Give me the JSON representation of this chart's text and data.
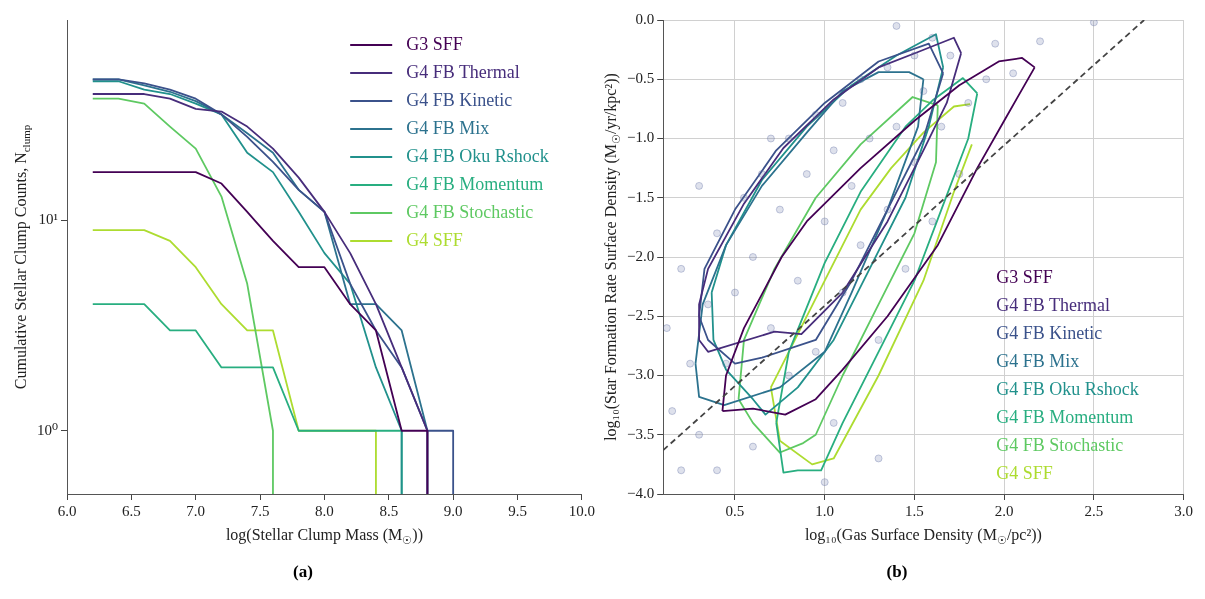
{
  "chart_data": [
    {
      "type": "line",
      "xlabel": "log(Stellar Clump Mass (M$_{☉}$))",
      "ylabel": "Cumulative Stellar Clump Counts, N$_{clump}$",
      "log": "y",
      "grid": false,
      "legend": "top right",
      "marker": "none",
      "xlim": [
        6.0,
        10.0
      ],
      "xticks": [
        {
          "value": 6,
          "label": "6.0"
        },
        {
          "value": 6.5,
          "label": "6.5"
        },
        {
          "value": 7,
          "label": "7.0"
        },
        {
          "value": 7.5,
          "label": "7.5"
        },
        {
          "value": 8,
          "label": "8.0"
        },
        {
          "value": 8.5,
          "label": "8.5"
        },
        {
          "value": 9,
          "label": "9.0"
        },
        {
          "value": 9.5,
          "label": "9.5"
        },
        {
          "value": 10,
          "label": "10.0"
        }
      ],
      "ylim": [
        0.5,
        90
      ],
      "yticks": [
        {
          "value": 1,
          "label": "10⁰"
        },
        {
          "value": 10,
          "label": "10¹"
        }
      ],
      "annotations": [
        "(a)"
      ],
      "series": [
        {
          "name": "G3 SFF",
          "color": "#440154",
          "x": [
            6.2,
            6.4,
            6.6,
            6.8,
            7.0,
            7.2,
            7.4,
            7.6,
            7.8,
            8.0,
            8.2,
            8.4,
            8.6,
            8.8,
            8.8
          ],
          "values": [
            17,
            17,
            17,
            17,
            17,
            15,
            11,
            8,
            6,
            6,
            4,
            3,
            1,
            1,
            0.5
          ]
        },
        {
          "name": "G4 FB Thermal",
          "color": "#472d7b",
          "x": [
            6.2,
            6.4,
            6.6,
            6.8,
            7.0,
            7.2,
            7.4,
            7.6,
            7.8,
            8.0,
            8.2,
            8.4,
            8.6,
            8.8,
            8.8
          ],
          "values": [
            40,
            40,
            40,
            38,
            34,
            33,
            28,
            22,
            16,
            11,
            7,
            4,
            2,
            1,
            0.5
          ]
        },
        {
          "name": "G4 FB Kinetic",
          "color": "#3b528b",
          "x": [
            6.2,
            6.4,
            6.6,
            6.8,
            7.0,
            7.2,
            7.4,
            7.6,
            7.8,
            8.0,
            8.2,
            8.4,
            8.6,
            8.8,
            9.0,
            9.0
          ],
          "values": [
            47,
            47,
            45,
            42,
            38,
            32,
            25,
            19,
            14,
            11,
            5,
            3,
            2,
            1,
            1,
            0.5
          ]
        },
        {
          "name": "G4 FB Mix",
          "color": "#2c728e",
          "x": [
            6.2,
            6.4,
            6.6,
            6.8,
            7.0,
            7.2,
            7.4,
            7.6,
            7.8,
            8.0,
            8.2,
            8.4,
            8.6,
            8.8,
            8.8
          ],
          "values": [
            47,
            47,
            44,
            41,
            37,
            32,
            26,
            21,
            14,
            11,
            4,
            4,
            3,
            1,
            0.5
          ]
        },
        {
          "name": "G4 FB Oku Rshock",
          "color": "#21918c",
          "x": [
            6.2,
            6.4,
            6.6,
            6.8,
            7.0,
            7.2,
            7.4,
            7.6,
            7.8,
            8.0,
            8.2,
            8.4,
            8.6,
            8.6
          ],
          "values": [
            46,
            46,
            42,
            40,
            36,
            32,
            21,
            17,
            11,
            7,
            5,
            2,
            1,
            0.5
          ]
        },
        {
          "name": "G4 FB Momentum",
          "color": "#28ae80",
          "x": [
            6.2,
            6.4,
            6.6,
            6.8,
            7.0,
            7.2,
            7.4,
            7.6,
            7.8,
            8.0,
            8.2,
            8.4,
            8.6,
            8.6
          ],
          "values": [
            4,
            4,
            4,
            3,
            3,
            2,
            2,
            2,
            1,
            1,
            1,
            1,
            1,
            0.5
          ]
        },
        {
          "name": "G4 FB Stochastic",
          "color": "#5ec962",
          "x": [
            6.2,
            6.4,
            6.6,
            6.8,
            7.0,
            7.2,
            7.4,
            7.6,
            7.6
          ],
          "values": [
            38,
            38,
            36,
            28,
            22,
            13,
            5,
            1,
            0.5
          ]
        },
        {
          "name": "G4 SFF",
          "color": "#addc30",
          "x": [
            6.2,
            6.4,
            6.6,
            6.8,
            7.0,
            7.2,
            7.4,
            7.6,
            7.8,
            8.0,
            8.2,
            8.4,
            8.4
          ],
          "values": [
            9,
            9,
            9,
            8,
            6,
            4,
            3,
            3,
            1,
            1,
            1,
            1,
            0.5
          ]
        }
      ]
    },
    {
      "type": "line",
      "xlabel": "log₁₀(Gas Surface Density (M$_{☉}$/pc²))",
      "ylabel": "log₁₀(Star Formation Rate Surface Density (M$_{☉}$/yr/kpc²))",
      "grid": true,
      "legend": "bottom right",
      "marker": "none",
      "xlim": [
        0.1,
        3.0
      ],
      "xticks": [
        {
          "value": 0.5,
          "label": "0.5"
        },
        {
          "value": 1,
          "label": "1.0"
        },
        {
          "value": 1.5,
          "label": "1.5"
        },
        {
          "value": 2,
          "label": "2.0"
        },
        {
          "value": 2.5,
          "label": "2.5"
        },
        {
          "value": 3,
          "label": "3.0"
        }
      ],
      "ylim": [
        -4.0,
        0.0
      ],
      "yticks": [
        {
          "value": -4,
          "label": "−4.0"
        },
        {
          "value": -3.5,
          "label": "−3.5"
        },
        {
          "value": -3,
          "label": "−3.0"
        },
        {
          "value": -2.5,
          "label": "−2.5"
        },
        {
          "value": -2,
          "label": "−2.0"
        },
        {
          "value": -1.5,
          "label": "−1.5"
        },
        {
          "value": -1,
          "label": "−1.0"
        },
        {
          "value": -0.5,
          "label": "−0.5"
        },
        {
          "value": 0,
          "label": "0.0"
        }
      ],
      "annotations": [
        "(b)"
      ],
      "series": [
        {
          "type": "scatter",
          "marker": "circle",
          "color": "#5b6aa0",
          "x": [
            0.15,
            0.2,
            0.25,
            0.3,
            0.35,
            0.2,
            0.4,
            0.45,
            0.5,
            0.55,
            0.6,
            0.6,
            0.65,
            0.7,
            0.75,
            0.8,
            0.8,
            0.85,
            0.9,
            0.95,
            0.95,
            1.0,
            1.05,
            1.05,
            1.1,
            1.1,
            1.15,
            1.2,
            1.2,
            1.25,
            1.3,
            1.35,
            1.35,
            1.4,
            1.45,
            1.5,
            1.5,
            1.55,
            1.6,
            1.6,
            1.65,
            1.7,
            1.75,
            1.8,
            1.9,
            1.95,
            2.05,
            2.2,
            2.5,
            0.3,
            0.12,
            1.3,
            1.0,
            0.4,
            0.7,
            1.4
          ],
          "values": [
            -3.3,
            -3.8,
            -2.9,
            -3.5,
            -2.4,
            -2.1,
            -1.8,
            -2.9,
            -2.3,
            -1.5,
            -3.6,
            -2.0,
            -1.3,
            -2.6,
            -1.6,
            -1.0,
            -3.0,
            -2.2,
            -1.3,
            -0.8,
            -2.8,
            -1.7,
            -1.1,
            -3.4,
            -0.7,
            -2.3,
            -1.4,
            -0.5,
            -1.9,
            -1.0,
            -2.7,
            -0.4,
            -1.6,
            -0.9,
            -2.1,
            -0.3,
            -1.2,
            -0.6,
            -0.15,
            -1.7,
            -0.9,
            -0.3,
            -1.3,
            -0.7,
            -0.5,
            -0.2,
            -0.45,
            -0.18,
            -0.02,
            -1.4,
            -2.6,
            -3.7,
            -3.9,
            -3.8,
            -1.0,
            -0.05
          ]
        },
        {
          "type": "line",
          "color": "#444444",
          "line_style": "dashed",
          "x": [
            0.1,
            2.78
          ],
          "values": [
            -3.63,
            0.0
          ]
        },
        {
          "name": "G3 SFF",
          "color": "#440154",
          "x": [
            0.43,
            0.45,
            0.55,
            0.76,
            0.9,
            1.2,
            1.5,
            1.75,
            1.97,
            2.1,
            2.17,
            null,
            0.43,
            0.6,
            0.78,
            0.95,
            1.1,
            1.35,
            1.63,
            1.85,
            2.0,
            2.17
          ],
          "values": [
            -3.3,
            -3.0,
            -2.6,
            -2.0,
            -1.7,
            -1.25,
            -0.85,
            -0.55,
            -0.35,
            -0.32,
            -0.4,
            null,
            -3.3,
            -3.28,
            -3.33,
            -3.2,
            -2.95,
            -2.5,
            -1.9,
            -1.25,
            -0.85,
            -0.4
          ]
        },
        {
          "name": "G4 FB Thermal",
          "color": "#472d7b",
          "x": [
            0.3,
            0.3,
            0.35,
            0.55,
            0.77,
            1.05,
            1.3,
            1.52,
            1.72,
            1.76,
            null,
            0.3,
            0.35,
            0.72,
            0.87,
            1.1,
            1.35,
            1.55,
            1.68,
            1.76
          ],
          "values": [
            -2.7,
            -2.4,
            -2.1,
            -1.55,
            -1.08,
            -0.67,
            -0.4,
            -0.27,
            -0.15,
            -0.28,
            null,
            -2.7,
            -2.8,
            -2.63,
            -2.65,
            -2.3,
            -1.7,
            -1.1,
            -0.7,
            -0.28
          ]
        },
        {
          "name": "G4 FB Kinetic",
          "color": "#3b528b",
          "x": [
            0.3,
            0.33,
            0.5,
            0.73,
            1.0,
            1.3,
            1.58,
            1.66,
            null,
            0.3,
            0.35,
            0.5,
            0.65,
            0.95,
            1.15,
            1.35,
            1.55,
            1.66
          ],
          "values": [
            -2.5,
            -2.1,
            -1.6,
            -1.1,
            -0.7,
            -0.35,
            -0.2,
            -0.45,
            null,
            -2.5,
            -2.7,
            -2.9,
            -2.85,
            -2.7,
            -2.2,
            -1.6,
            -1.0,
            -0.45
          ]
        },
        {
          "name": "G4 FB Mix",
          "color": "#2c728e",
          "x": [
            0.28,
            0.32,
            0.45,
            0.65,
            0.9,
            1.1,
            1.3,
            1.47,
            1.55,
            null,
            0.28,
            0.3,
            0.44,
            0.75,
            1.0,
            1.15,
            1.35,
            1.52,
            1.55
          ],
          "values": [
            -2.9,
            -2.4,
            -1.9,
            -1.4,
            -0.95,
            -0.6,
            -0.44,
            -0.44,
            -0.5,
            null,
            -2.9,
            -3.18,
            -3.25,
            -3.1,
            -2.8,
            -2.3,
            -1.6,
            -0.9,
            -0.5
          ]
        },
        {
          "name": "G4 FB Oku Rshock",
          "color": "#21918c",
          "x": [
            0.37,
            0.45,
            0.65,
            0.9,
            1.15,
            1.4,
            1.62,
            1.66,
            null,
            0.37,
            0.38,
            0.45,
            0.6,
            0.67,
            0.85,
            1.05,
            1.25,
            1.45,
            1.58,
            1.66
          ],
          "values": [
            -2.3,
            -1.9,
            -1.35,
            -0.9,
            -0.55,
            -0.3,
            -0.12,
            -0.4,
            null,
            -2.3,
            -2.7,
            -2.95,
            -3.2,
            -3.33,
            -3.1,
            -2.7,
            -2.1,
            -1.5,
            -0.9,
            -0.4
          ]
        },
        {
          "name": "G4 FB Momentum",
          "color": "#28ae80",
          "x": [
            0.73,
            0.8,
            1.0,
            1.2,
            1.45,
            1.6,
            1.77,
            1.85,
            null,
            0.73,
            0.77,
            0.85,
            0.98,
            1.1,
            1.3,
            1.5,
            1.65,
            1.8,
            1.85
          ],
          "values": [
            -3.4,
            -2.8,
            -2.05,
            -1.45,
            -0.9,
            -0.68,
            -0.49,
            -0.62,
            null,
            -3.4,
            -3.82,
            -3.8,
            -3.8,
            -3.4,
            -2.8,
            -2.2,
            -1.6,
            -1.0,
            -0.62
          ]
        },
        {
          "name": "G4 FB Stochastic",
          "color": "#5ec962",
          "x": [
            0.52,
            0.55,
            0.72,
            0.95,
            1.2,
            1.49,
            1.63,
            null,
            0.52,
            0.6,
            0.75,
            0.88,
            0.95,
            1.1,
            1.3,
            1.5,
            1.62,
            1.63
          ],
          "values": [
            -3.2,
            -2.7,
            -2.1,
            -1.5,
            -1.05,
            -0.65,
            -0.72,
            null,
            -3.2,
            -3.4,
            -3.65,
            -3.57,
            -3.5,
            -3.0,
            -2.4,
            -1.8,
            -1.2,
            -0.72
          ]
        },
        {
          "name": "G4 SFF",
          "color": "#addc30",
          "x": [
            0.7,
            0.8,
            1.0,
            1.2,
            1.37,
            1.55,
            1.72,
            1.81,
            null,
            0.7,
            0.75,
            0.93,
            1.05,
            1.3,
            1.55,
            1.72,
            1.82
          ],
          "values": [
            -3.1,
            -2.8,
            -2.2,
            -1.6,
            -1.25,
            -0.95,
            -0.73,
            -0.71,
            null,
            -3.1,
            -3.55,
            -3.75,
            -3.7,
            -3.0,
            -2.2,
            -1.45,
            -1.05
          ]
        }
      ]
    }
  ]
}
